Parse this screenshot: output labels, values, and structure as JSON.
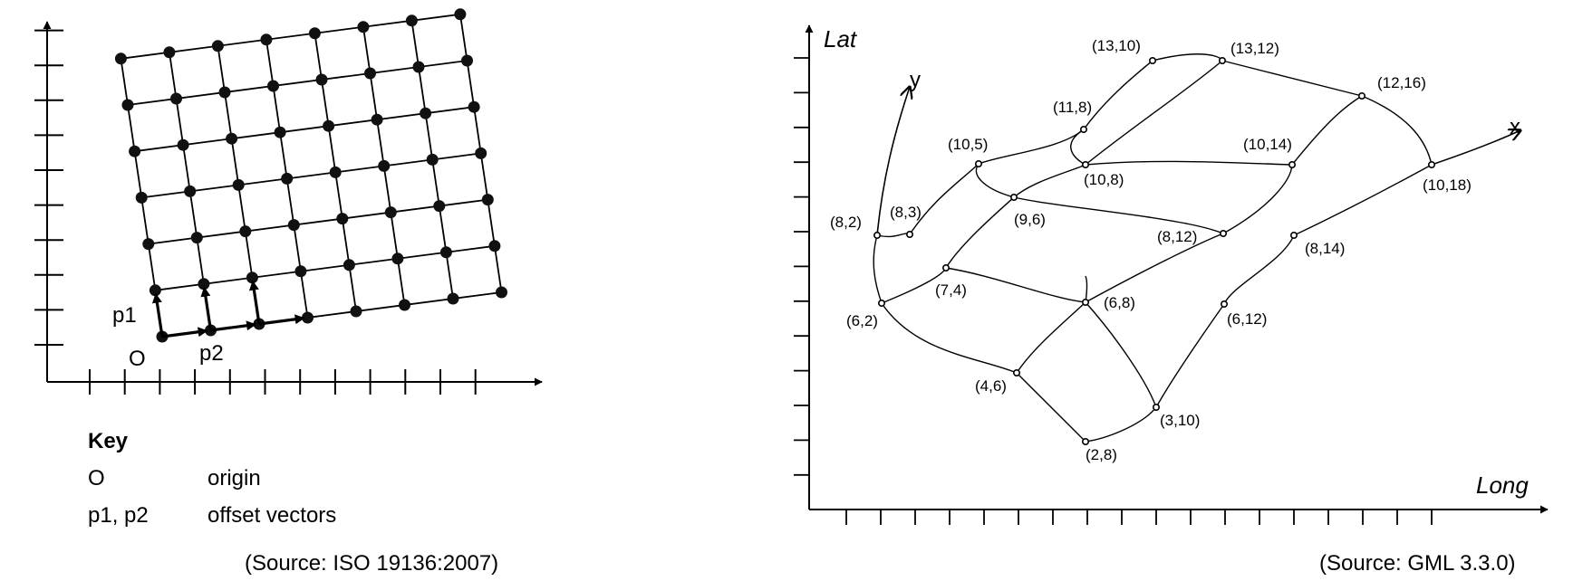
{
  "left_figure": {
    "origin_label": "O",
    "vector_labels": [
      "p1",
      "p2"
    ],
    "key": {
      "title": "Key",
      "entries": [
        {
          "term": "O",
          "definition": "origin"
        },
        {
          "term": "p1, p2",
          "definition": "offset vectors"
        }
      ]
    },
    "source": "(Source: ISO 19136:2007)"
  },
  "right_figure": {
    "lat_label": "Lat",
    "long_label": "Long",
    "x_axis_label": "x",
    "y_axis_label": "y",
    "source": "(Source: GML 3.3.0)",
    "points": [
      {
        "id": "p_13_10",
        "label": "(13,10)"
      },
      {
        "id": "p_13_12",
        "label": "(13,12)"
      },
      {
        "id": "p_12_16",
        "label": "(12,16)"
      },
      {
        "id": "p_11_8",
        "label": "(11,8)"
      },
      {
        "id": "p_10_5",
        "label": "(10,5)"
      },
      {
        "id": "p_10_14",
        "label": "(10,14)"
      },
      {
        "id": "p_10_8",
        "label": "(10,8)"
      },
      {
        "id": "p_10_18",
        "label": "(10,18)"
      },
      {
        "id": "p_8_2",
        "label": "(8,2)"
      },
      {
        "id": "p_8_3",
        "label": "(8,3)"
      },
      {
        "id": "p_9_6",
        "label": "(9,6)"
      },
      {
        "id": "p_8_12",
        "label": "(8,12)"
      },
      {
        "id": "p_8_14",
        "label": "(8,14)"
      },
      {
        "id": "p_7_4",
        "label": "(7,4)"
      },
      {
        "id": "p_6_2",
        "label": "(6,2)"
      },
      {
        "id": "p_6_8",
        "label": "(6,8)"
      },
      {
        "id": "p_6_12",
        "label": "(6,12)"
      },
      {
        "id": "p_4_6",
        "label": "(4,6)"
      },
      {
        "id": "p_3_10",
        "label": "(3,10)"
      },
      {
        "id": "p_2_8",
        "label": "(2,8)"
      }
    ]
  }
}
